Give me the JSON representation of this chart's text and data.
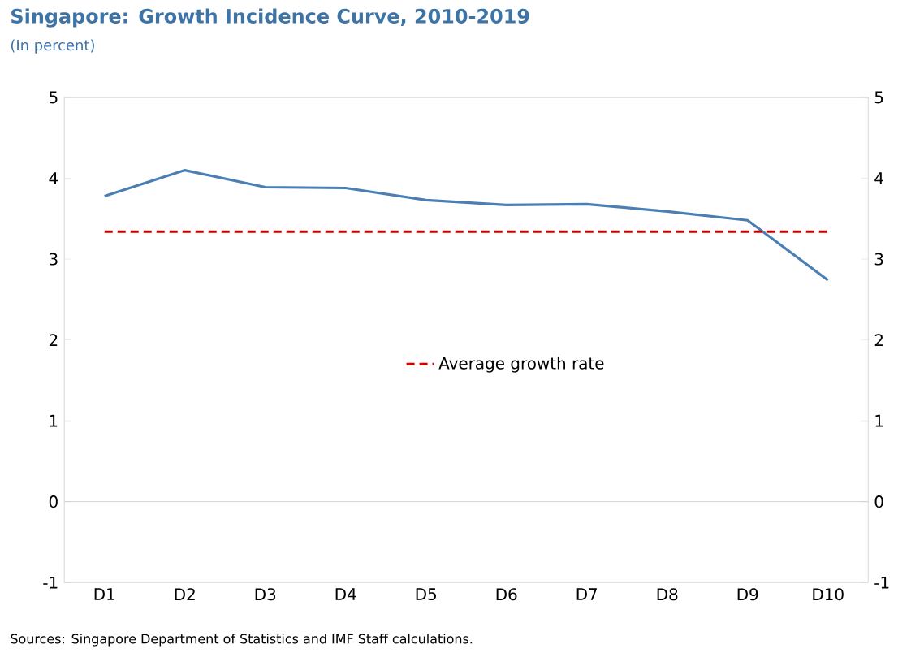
{
  "chart_data": {
    "type": "line",
    "title": "Singapore: Growth Incidence Curve, 2010-2019",
    "subtitle": "(In percent)",
    "categories": [
      "D1",
      "D2",
      "D3",
      "D4",
      "D5",
      "D6",
      "D7",
      "D8",
      "D9",
      "D10"
    ],
    "series": [
      {
        "color": "#4a7fb5",
        "values": [
          3.78,
          4.1,
          3.89,
          3.88,
          3.73,
          3.67,
          3.68,
          3.59,
          3.48,
          2.74
        ]
      },
      {
        "name": "Average growth rate",
        "color": "#cc0000",
        "line_style": "dashed",
        "values": [
          3.34,
          3.34,
          3.34,
          3.34,
          3.34,
          3.34,
          3.34,
          3.34,
          3.34,
          3.34
        ]
      }
    ],
    "ylim": [
      -1,
      5
    ],
    "yticks": [
      -1,
      0,
      1,
      2,
      3,
      4,
      5
    ],
    "y2lim": [
      -1,
      5
    ],
    "y2ticks": [
      -1,
      0,
      1,
      2,
      3,
      4,
      5
    ],
    "ref_lines": [
      {
        "axis": "y",
        "value": 0,
        "color": "#c8c8c8"
      }
    ],
    "grid": false,
    "legend": "center",
    "marker": "none",
    "annotations": [
      "Sources: Singapore Department of Statistics and IMF Staff calculations."
    ]
  }
}
